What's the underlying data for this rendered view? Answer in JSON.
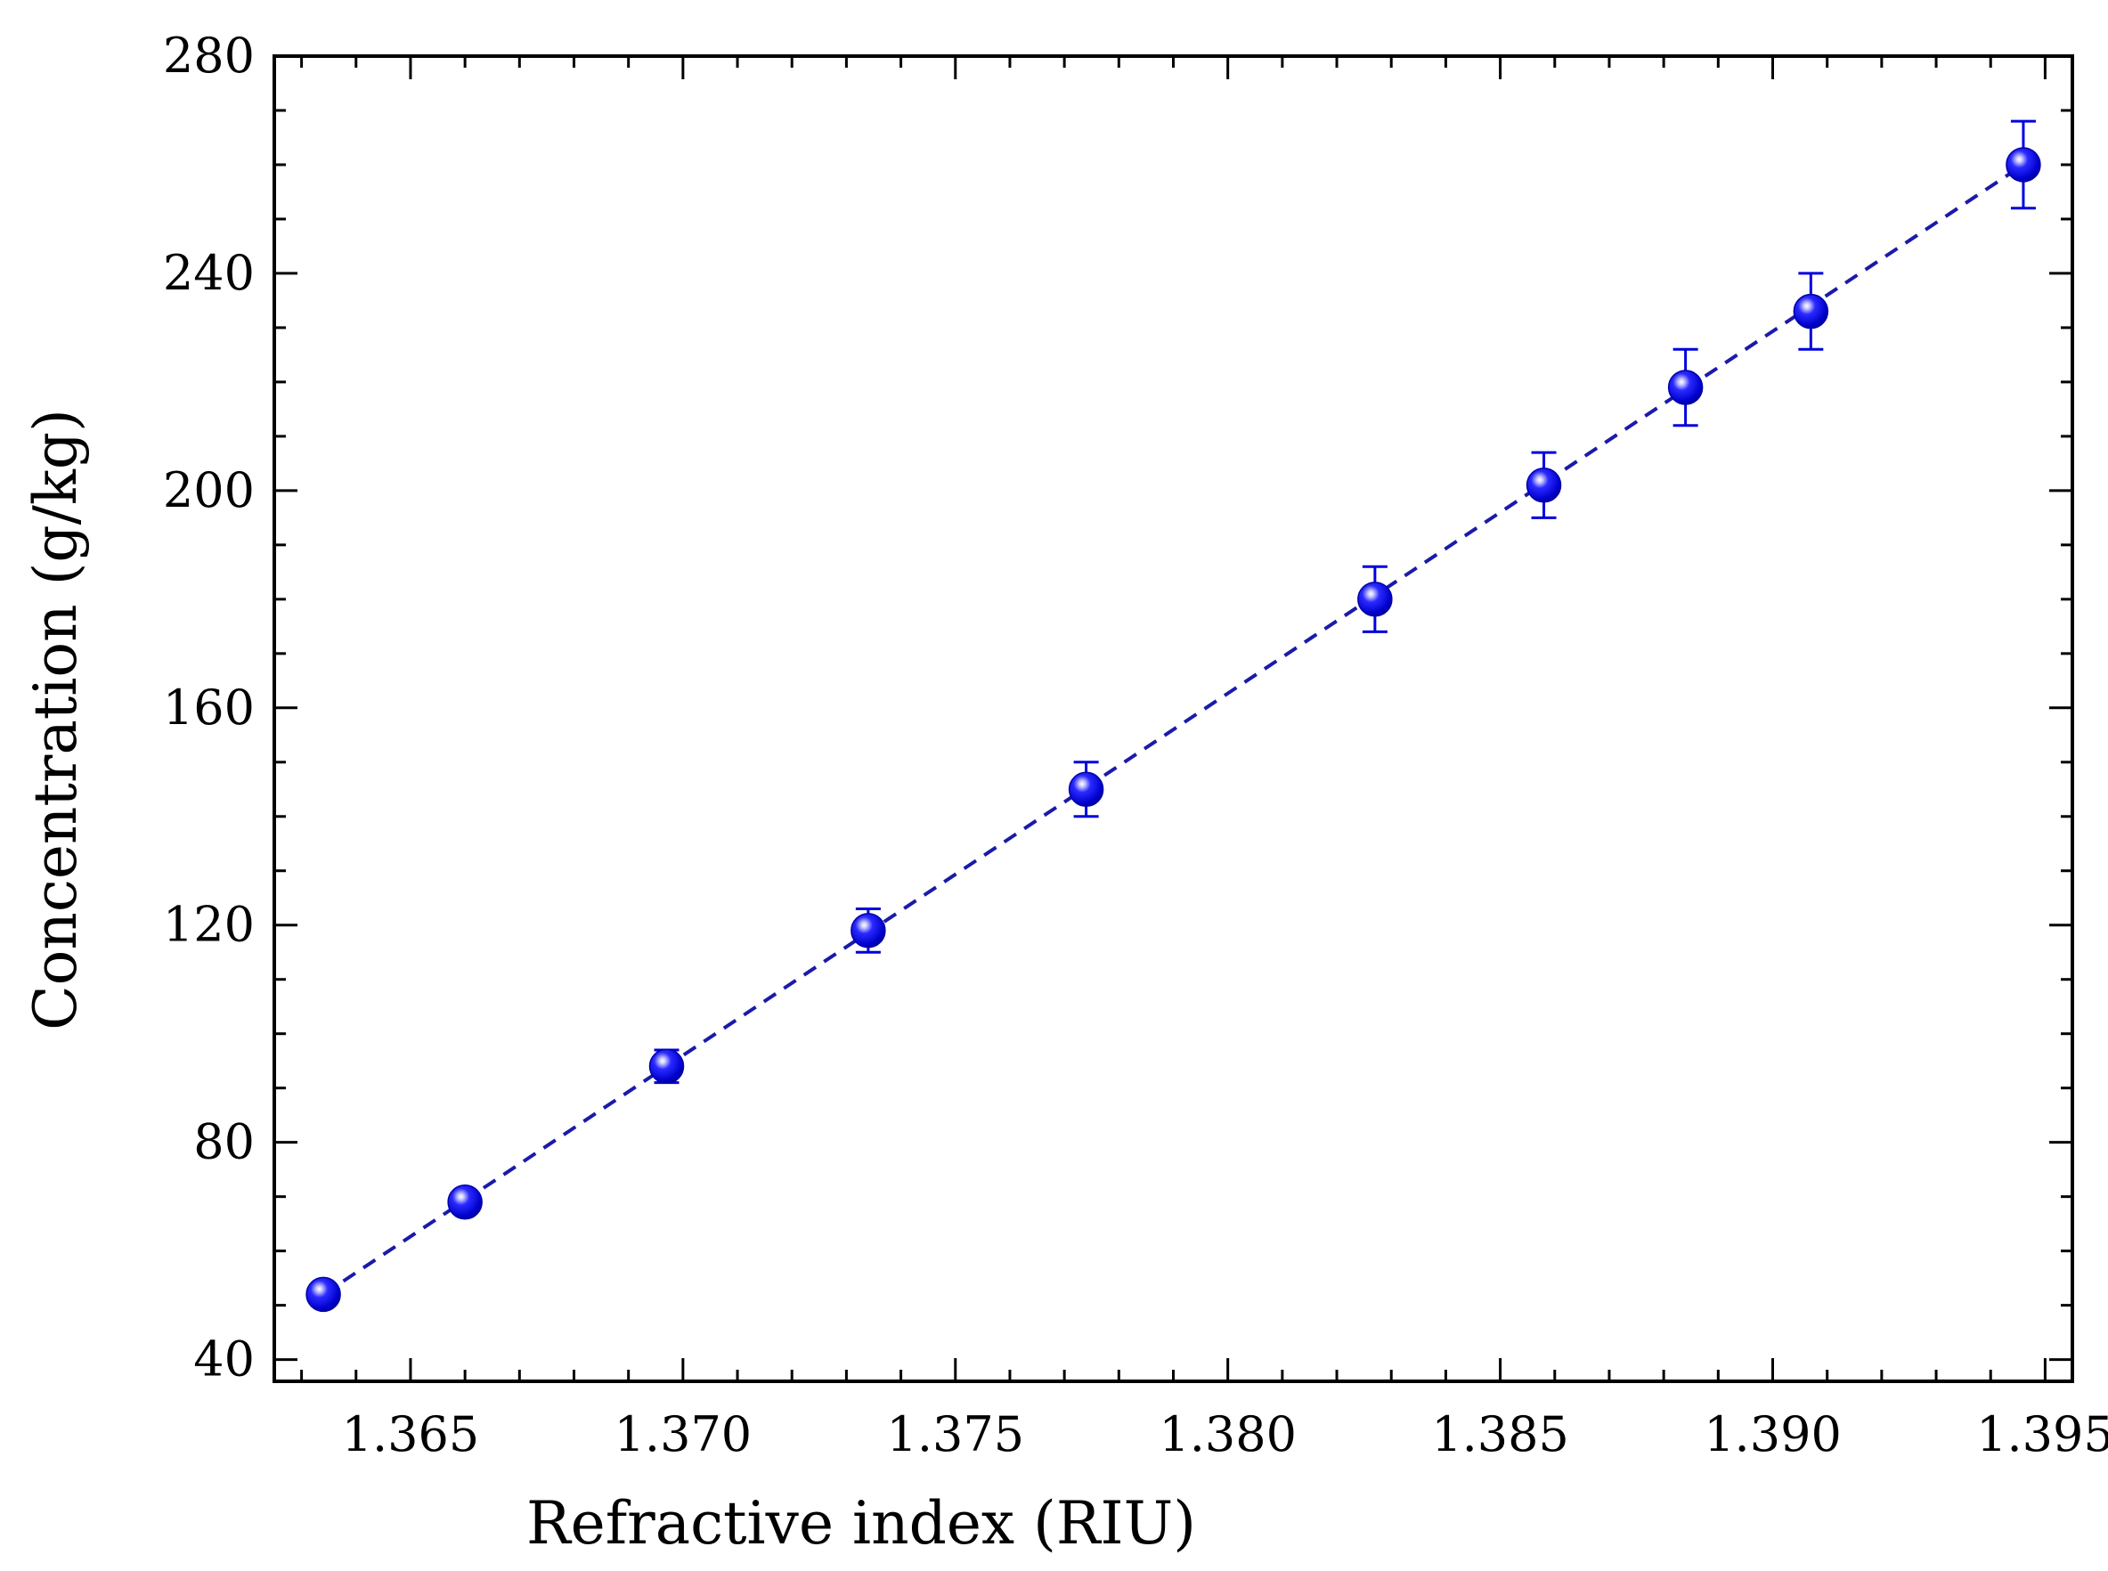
{
  "chart_data": {
    "type": "scatter",
    "title": "",
    "xlabel": "Refractive index (RIU)",
    "ylabel": "Concentration (g/kg)",
    "xlim": [
      1.3625,
      1.3955
    ],
    "ylim": [
      36,
      280
    ],
    "x_ticks": [
      1.365,
      1.37,
      1.375,
      1.38,
      1.385,
      1.39,
      1.395
    ],
    "x_tick_labels": [
      "1.365",
      "1.370",
      "1.375",
      "1.380",
      "1.385",
      "1.390",
      "1.395"
    ],
    "x_minor_step": 0.001,
    "y_ticks": [
      40,
      80,
      120,
      160,
      200,
      240,
      280
    ],
    "y_tick_labels": [
      "40",
      "80",
      "120",
      "160",
      "200",
      "240",
      "280"
    ],
    "y_minor_step": 10,
    "grid": false,
    "legend": "none",
    "series": [
      {
        "marker": "sphere",
        "color": "#0000dd",
        "points": [
          {
            "x": 1.3634,
            "y": 52,
            "err": 2
          },
          {
            "x": 1.366,
            "y": 69,
            "err": 2
          },
          {
            "x": 1.3697,
            "y": 94,
            "err": 3
          },
          {
            "x": 1.3734,
            "y": 119,
            "err": 4
          },
          {
            "x": 1.3774,
            "y": 145,
            "err": 5
          },
          {
            "x": 1.3827,
            "y": 180,
            "err": 6
          },
          {
            "x": 1.3858,
            "y": 201,
            "err": 6
          },
          {
            "x": 1.3884,
            "y": 219,
            "err": 7
          },
          {
            "x": 1.3907,
            "y": 233,
            "err": 7
          },
          {
            "x": 1.3946,
            "y": 260,
            "err": 8
          }
        ]
      }
    ],
    "fit_line": {
      "style": "dashed",
      "color": "#1a1aaa",
      "x": [
        1.3634,
        1.3946
      ],
      "y": [
        52,
        260
      ]
    }
  }
}
